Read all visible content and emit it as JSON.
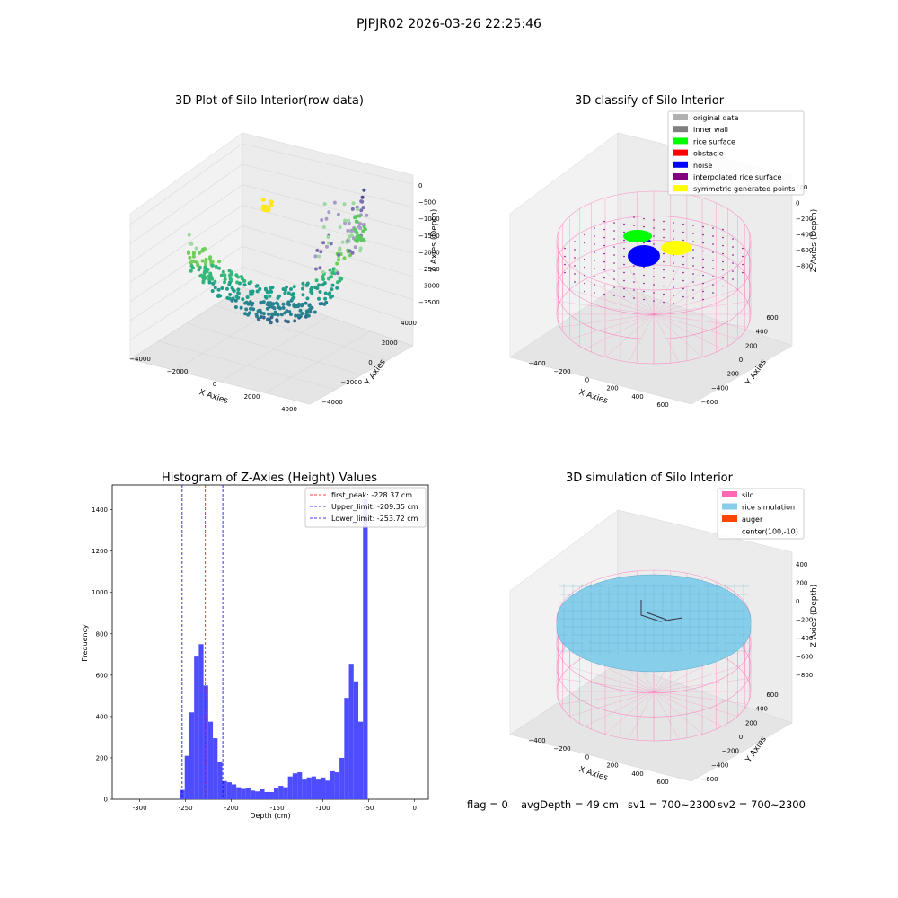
{
  "suptitle": "PJPJR02 2026-03-26 22:25:46",
  "colors": {
    "pink": "#ff69b4",
    "sky": "#87ceeb",
    "auger": "#ff4500",
    "hist": "#4d4dff",
    "green": "#00ff00",
    "yellow": "#ffff00",
    "blue": "#0000ff",
    "purple": "#800080"
  },
  "chart_data": [
    {
      "type": "scatter",
      "projection": "3d",
      "title": "3D Plot of Silo Interior(row data)",
      "xlabel": "X Axies",
      "ylabel": "Y Axies",
      "zlabel": "Z Axies (Depth)",
      "xticks": [
        "−4000",
        "−2000",
        "0",
        "2000",
        "4000"
      ],
      "yticks": [
        "−4000",
        "−2000",
        "0",
        "2000",
        "4000"
      ],
      "zticks": [
        "0",
        "−500",
        "−1000",
        "−1500",
        "−2000",
        "−2500",
        "−3000",
        "−3500"
      ],
      "xlim": [
        -4500,
        4500
      ],
      "ylim": [
        -4500,
        4500
      ],
      "zlim": [
        -3700,
        100
      ],
      "colormap": "viridis"
    },
    {
      "type": "scatter",
      "projection": "3d",
      "title": "3D classify of Silo Interior",
      "xlabel": "X Axies",
      "ylabel": "Y Axies",
      "zlabel": "Z Axies (Depth)",
      "xticks": [
        "−400",
        "−200",
        "0",
        "200",
        "400",
        "600"
      ],
      "yticks": [
        "−600",
        "−400",
        "−200",
        "0",
        "200",
        "400",
        "600"
      ],
      "zticks": [
        "200",
        "0",
        "−200",
        "−400",
        "−600",
        "−800"
      ],
      "legend": {
        "position": "upper right",
        "entries": [
          {
            "label": "original data",
            "color": "#b0b0b0"
          },
          {
            "label": "inner wall",
            "color": "#808080"
          },
          {
            "label": "rice surface",
            "color": "#00ff00"
          },
          {
            "label": "obstacle",
            "color": "#ff0000"
          },
          {
            "label": "noise",
            "color": "#0000ff"
          },
          {
            "label": "interpolated rice surface",
            "color": "#800080"
          },
          {
            "label": "symmetric generated points",
            "color": "#ffff00"
          }
        ]
      }
    },
    {
      "type": "bar",
      "title": "Histogram of Z-Axies (Height) Values",
      "xlabel": "Depth (cm)",
      "ylabel": "Frequency",
      "xlim": [
        -330,
        15
      ],
      "ylim": [
        0,
        1520
      ],
      "xticks": [
        -300,
        -250,
        -200,
        -150,
        -100,
        -50,
        0
      ],
      "yticks": [
        0,
        200,
        400,
        600,
        800,
        1000,
        1200,
        1400
      ],
      "bin_start": -256,
      "bin_width": 5.12,
      "values": [
        45,
        210,
        420,
        690,
        750,
        550,
        375,
        295,
        180,
        88,
        82,
        72,
        58,
        50,
        55,
        42,
        38,
        48,
        35,
        35,
        55,
        65,
        58,
        110,
        125,
        130,
        95,
        105,
        110,
        95,
        105,
        90,
        135,
        130,
        200,
        490,
        655,
        570,
        375,
        1450
      ],
      "vlines": [
        {
          "label": "first_peak: -228.37 cm",
          "x": -228.37,
          "color": "#ff0000"
        },
        {
          "label": "Upper_limit: -209.35 cm",
          "x": -209.35,
          "color": "#0000ff"
        },
        {
          "label": "Lower_limit: -253.72 cm",
          "x": -253.72,
          "color": "#0000ff"
        }
      ],
      "legend": {
        "position": "upper right"
      }
    },
    {
      "type": "surface",
      "projection": "3d",
      "title": "3D simulation of Silo Interior",
      "xlabel": "X Axies",
      "ylabel": "Y Axies",
      "zlabel": "Z Axies (Depth)",
      "xticks": [
        "−400",
        "−200",
        "0",
        "200",
        "400",
        "600"
      ],
      "yticks": [
        "−600",
        "−400",
        "−200",
        "0",
        "200",
        "400",
        "600"
      ],
      "zticks": [
        "400",
        "200",
        "0",
        "−200",
        "−400",
        "−600",
        "−800"
      ],
      "legend": {
        "position": "upper right",
        "entries": [
          {
            "label": "silo",
            "color": "#ff69b4"
          },
          {
            "label": "rice simulation",
            "color": "#87ceeb"
          },
          {
            "label": "auger",
            "color": "#ff4500"
          },
          {
            "label": "center(100,-10)",
            "color": ""
          }
        ]
      }
    }
  ],
  "footer": {
    "flag": "flag = 0",
    "avg": "avgDepth = 49 cm",
    "sv1": "sv1 = 700~2300",
    "sv2": "sv2 = 700~2300"
  }
}
